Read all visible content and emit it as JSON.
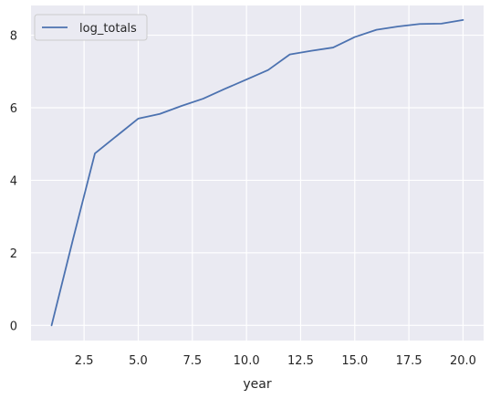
{
  "chart_data": {
    "type": "line",
    "xlabel": "year",
    "ylabel": "",
    "xlim": [
      0.05,
      20.95
    ],
    "ylim": [
      -0.42,
      8.82
    ],
    "xticks": [
      2.5,
      5.0,
      7.5,
      10.0,
      12.5,
      15.0,
      17.5,
      20.0
    ],
    "xtick_labels": [
      "2.5",
      "5.0",
      "7.5",
      "10.0",
      "12.5",
      "15.0",
      "17.5",
      "20.0"
    ],
    "yticks": [
      0,
      2,
      4,
      6,
      8
    ],
    "ytick_labels": [
      "0",
      "2",
      "4",
      "6",
      "8"
    ],
    "grid": true,
    "legend_position": "top-left",
    "series": [
      {
        "name": "log_totals",
        "color": "#4c72b0",
        "x": [
          1,
          2,
          3,
          4,
          5,
          6,
          7,
          8,
          9,
          10,
          11,
          12,
          13,
          14,
          15,
          16,
          17,
          18,
          19,
          20
        ],
        "y": [
          0.0,
          2.4,
          4.74,
          5.22,
          5.7,
          5.83,
          6.05,
          6.25,
          6.52,
          6.78,
          7.04,
          7.47,
          7.57,
          7.66,
          7.95,
          8.15,
          8.24,
          8.31,
          8.32,
          8.42
        ]
      }
    ]
  }
}
